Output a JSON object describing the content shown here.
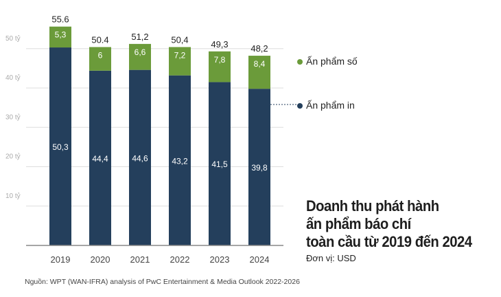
{
  "chart_data": {
    "type": "bar",
    "stacked": true,
    "title": "Doanh thu phát hành ấn phẩm báo chí toàn cầu từ 2019 đến 2024",
    "title_lines": [
      "Doanh thu phát hành",
      "ấn phẩm báo chí",
      "toàn cầu từ 2019 đến 2024"
    ],
    "unit": "Đơn vị: USD",
    "source": "Nguồn: WPT (WAN-IFRA) analysis of PwC Entertainment & Media Outlook 2022-2026",
    "categories": [
      "2019",
      "2020",
      "2021",
      "2022",
      "2023",
      "2024"
    ],
    "series": [
      {
        "name": "Ấn phẩm in",
        "color": "#243f5c",
        "values": [
          50.3,
          44.4,
          44.6,
          43.2,
          41.5,
          39.8
        ],
        "labels": [
          "50,3",
          "44,4",
          "44,6",
          "43,2",
          "41,5",
          "39,8"
        ]
      },
      {
        "name": "Ấn phẩm số",
        "color": "#6b9b3a",
        "values": [
          5.3,
          6,
          6.6,
          7.2,
          7.8,
          8.4
        ],
        "labels": [
          "5,3",
          "6",
          "6,6",
          "7,2",
          "7,8",
          "8,4"
        ]
      }
    ],
    "totals": [
      "55.6",
      "50.4",
      "51,2",
      "50,4",
      "49,3",
      "48,2"
    ],
    "y_ticks": [
      10,
      20,
      30,
      40,
      50
    ],
    "y_tick_labels": [
      "10 tỷ",
      "20 tỷ",
      "30 tỷ",
      "40 tỷ",
      "50 tỷ"
    ],
    "ylim": [
      0,
      56
    ],
    "grid": true,
    "legend": "right"
  }
}
